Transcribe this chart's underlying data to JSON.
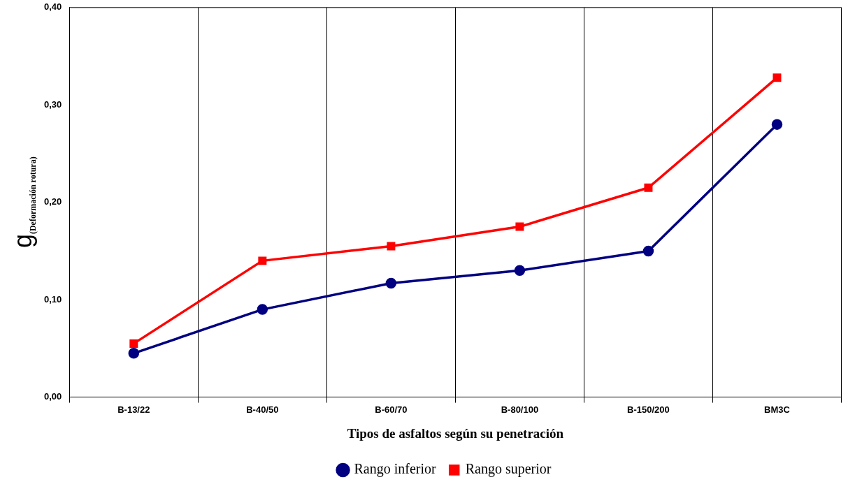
{
  "chart_data": {
    "type": "line",
    "xlabel": "Tipos de asfaltos según su penetración",
    "ylabel": "g$_{(Deformación rotura)}$",
    "categories": [
      "B-13/22",
      "B-40/50",
      "B-60/70",
      "B-80/100",
      "B-150/200",
      "BM3C"
    ],
    "series": [
      {
        "name": "Rango inferior",
        "color": "#000080",
        "marker": "circle",
        "values": [
          0.045,
          0.09,
          0.117,
          0.13,
          0.15,
          0.28
        ]
      },
      {
        "name": "Rango superior",
        "color": "#ff0000",
        "marker": "square",
        "values": [
          0.055,
          0.14,
          0.155,
          0.175,
          0.215,
          0.328
        ]
      }
    ],
    "ylim": [
      0,
      0.4
    ],
    "yticks": [
      {
        "value": 0,
        "label": "0,00"
      },
      {
        "value": 0.1,
        "label": "0,10"
      },
      {
        "value": 0.2,
        "label": "0,20"
      },
      {
        "value": 0.3,
        "label": "0,30"
      },
      {
        "value": 0.4,
        "label": "0,40"
      }
    ],
    "grid": "x",
    "legend": "bottom",
    "line_style": "solid"
  }
}
